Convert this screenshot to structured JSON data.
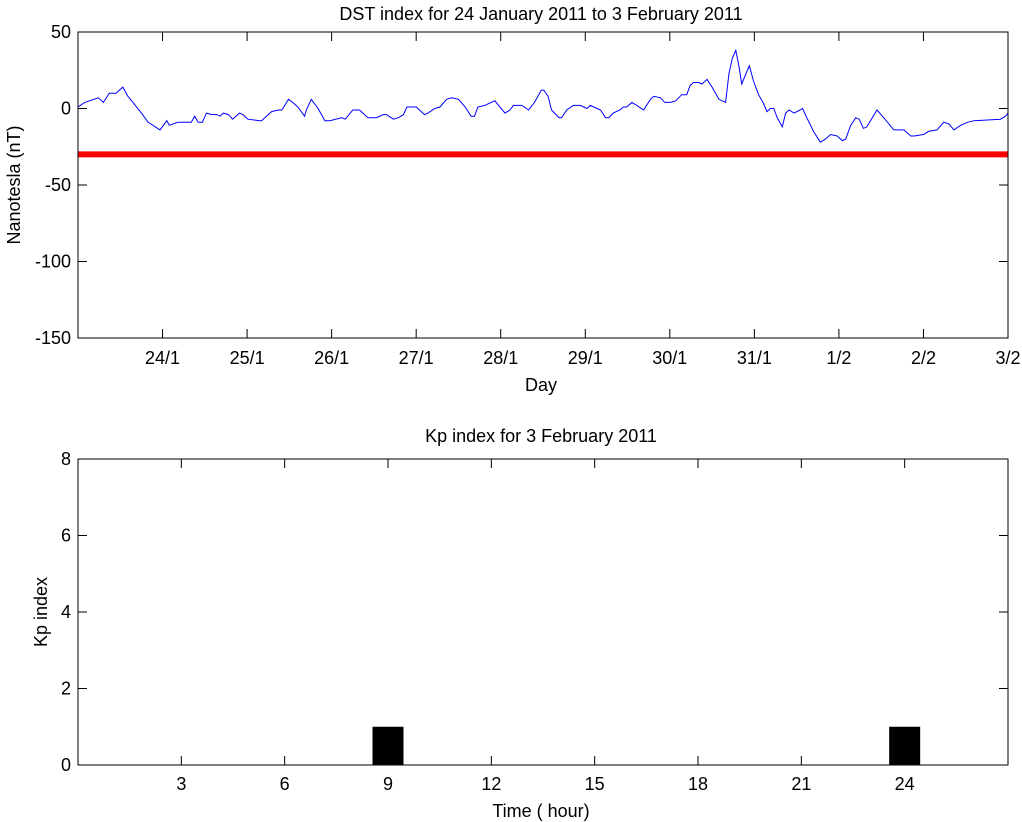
{
  "chart_data": [
    {
      "type": "line",
      "title": "DST index for 24 January 2011 to 3 February 2011",
      "xlabel": "Day",
      "ylabel": "Nanotesla (nT)",
      "x_units": "days since 23/1 00:00",
      "xlim": [
        0,
        11
      ],
      "ylim": [
        -150,
        50
      ],
      "x_ticks": {
        "values": [
          1,
          2,
          3,
          4,
          5,
          6,
          7,
          8,
          9,
          10,
          11
        ],
        "labels": [
          "24/1",
          "25/1",
          "26/1",
          "27/1",
          "28/1",
          "29/1",
          "30/1",
          "31/1",
          "1/2",
          "2/2",
          "3/2"
        ]
      },
      "y_ticks": {
        "values": [
          50,
          0,
          -50,
          -100,
          -150
        ],
        "labels": [
          "50",
          "0",
          "-50",
          "-100",
          "-150"
        ]
      },
      "grid": false,
      "threshold": {
        "value": -30,
        "color": "#ff0000"
      },
      "series": [
        {
          "name": "DST",
          "color": "#0000ff",
          "x": [
            0,
            0.08,
            0.24,
            0.3,
            0.37,
            0.45,
            0.53,
            0.59,
            0.65,
            0.75,
            0.83,
            0.97,
            1.05,
            1.08,
            1.18,
            1.34,
            1.38,
            1.42,
            1.47,
            1.52,
            1.58,
            1.64,
            1.68,
            1.72,
            1.78,
            1.83,
            1.91,
            1.95,
            2.01,
            2.15,
            2.17,
            2.29,
            2.37,
            2.41,
            2.49,
            2.54,
            2.6,
            2.68,
            2.7,
            2.76,
            2.84,
            2.92,
            2.98,
            3.12,
            3.16,
            3.25,
            3.33,
            3.43,
            3.53,
            3.61,
            3.65,
            3.73,
            3.79,
            3.85,
            3.89,
            3.94,
            4.0,
            4.1,
            4.14,
            4.22,
            4.28,
            4.36,
            4.42,
            4.5,
            4.58,
            4.65,
            4.69,
            4.73,
            4.81,
            4.93,
            4.99,
            5.05,
            5.11,
            5.15,
            5.25,
            5.33,
            5.4,
            5.48,
            5.51,
            5.56,
            5.6,
            5.69,
            5.72,
            5.78,
            5.86,
            5.94,
            6.02,
            6.06,
            6.18,
            6.24,
            6.28,
            6.33,
            6.41,
            6.45,
            6.49,
            6.55,
            6.61,
            6.69,
            6.77,
            6.81,
            6.89,
            6.94,
            7.01,
            7.07,
            7.14,
            7.2,
            7.24,
            7.28,
            7.34,
            7.38,
            7.44,
            7.5,
            7.58,
            7.62,
            7.66,
            7.7,
            7.74,
            7.78,
            7.82,
            7.85,
            7.94,
            7.99,
            8.05,
            8.11,
            8.15,
            8.19,
            8.23,
            8.27,
            8.33,
            8.37,
            8.41,
            8.47,
            8.54,
            8.57,
            8.62,
            8.7,
            8.78,
            8.84,
            8.9,
            8.98,
            9.04,
            9.08,
            9.14,
            9.2,
            9.24,
            9.29,
            9.33,
            9.45,
            9.53,
            9.65,
            9.73,
            9.77,
            9.85,
            9.89,
            10.0,
            10.06,
            10.16,
            10.24,
            10.3,
            10.36,
            10.44,
            10.52,
            10.6,
            10.91,
            10.97,
            11.0
          ],
          "y": [
            1,
            4,
            7,
            4,
            10,
            10,
            14,
            8,
            4,
            -3,
            -9,
            -14,
            -8,
            -11,
            -9,
            -9,
            -5,
            -9,
            -9,
            -3,
            -4,
            -4,
            -5,
            -3,
            -4,
            -7,
            -3,
            -4,
            -7,
            -8,
            -8,
            -2,
            -1,
            -1,
            6,
            4,
            1,
            -5,
            -1,
            6,
            0,
            -8,
            -8,
            -6,
            -7,
            -1,
            -1,
            -6,
            -6,
            -4,
            -4,
            -7,
            -6,
            -4,
            1,
            1,
            1,
            -4,
            -3,
            0,
            1,
            6,
            7,
            6,
            1,
            -5,
            -5,
            1,
            2,
            5,
            1,
            -3,
            -1,
            2,
            2,
            -1,
            4,
            12,
            12,
            8,
            -1,
            -6,
            -6,
            -1,
            2,
            2,
            0,
            2,
            -1,
            -6,
            -6,
            -3,
            -1,
            1,
            1,
            4,
            2,
            -1,
            6,
            8,
            7,
            4,
            4,
            5,
            9,
            9,
            15,
            17,
            17,
            16,
            19,
            14,
            6,
            5,
            4,
            23,
            33,
            38,
            27,
            16,
            28,
            18,
            9,
            3,
            -2,
            0,
            0,
            -6,
            -12,
            -3,
            -1,
            -3,
            -1,
            0,
            -6,
            -15,
            -22,
            -20,
            -17,
            -18,
            -21,
            -20,
            -11,
            -6,
            -7,
            -13,
            -12,
            -1,
            -6,
            -14,
            -14,
            -14,
            -18,
            -18,
            -17,
            -15,
            -14,
            -9,
            -10,
            -14,
            -11,
            -9,
            -8,
            -7,
            -5,
            -3
          ]
        }
      ]
    },
    {
      "type": "bar",
      "title": "Kp index for 3 February 2011",
      "xlabel": "Time ( hour)",
      "ylabel": "Kp index",
      "xlim": [
        0,
        27
      ],
      "ylim": [
        0,
        8
      ],
      "x_ticks": {
        "values": [
          3,
          6,
          9,
          12,
          15,
          18,
          21,
          24
        ],
        "labels": [
          "3",
          "6",
          "9",
          "12",
          "15",
          "18",
          "21",
          "24"
        ]
      },
      "y_ticks": {
        "values": [
          0,
          2,
          4,
          6,
          8
        ],
        "labels": [
          "0",
          "2",
          "4",
          "6",
          "8"
        ]
      },
      "grid": false,
      "bar_width": 0.9,
      "bar_color": "#000000",
      "x": [
        9,
        24
      ],
      "values": [
        1,
        1
      ]
    }
  ]
}
